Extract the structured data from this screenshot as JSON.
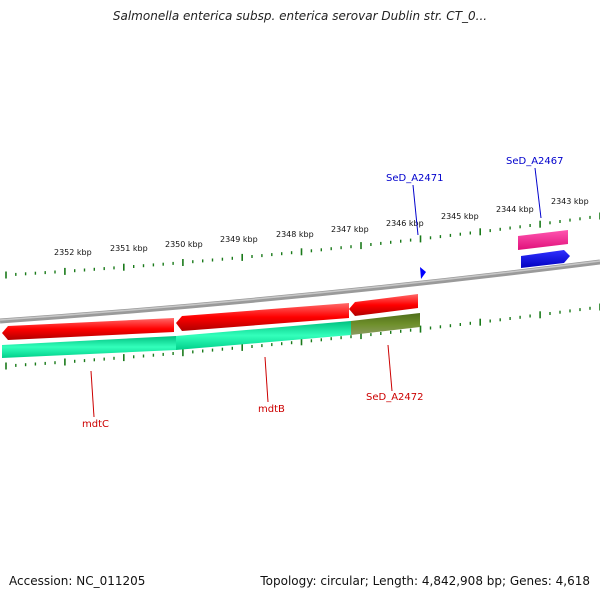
{
  "title": "Salmonella enterica subsp. enterica serovar Dublin str. CT_0...",
  "footer": {
    "accession": "Accession: NC_011205",
    "summary": "Topology: circular; Length: 4,842,908 bp; Genes: 4,618"
  },
  "scale_labels": [
    "2352 kbp",
    "2351 kbp",
    "2350 kbp",
    "2349 kbp",
    "2348 kbp",
    "2347 kbp",
    "2346 kbp",
    "2345 kbp",
    "2344 kbp",
    "2343 kbp"
  ],
  "genes": [
    {
      "name": "mdtC",
      "color": "#cc0000"
    },
    {
      "name": "mdtB",
      "color": "#cc0000"
    },
    {
      "name": "SeD_A2472",
      "color": "#cc0000"
    },
    {
      "name": "SeD_A2471",
      "color": "#0000cc"
    },
    {
      "name": "SeD_A2467",
      "color": "#0000cc"
    }
  ],
  "colors": {
    "cds_red": "#ff0000",
    "cds_green": "#00e8a0",
    "cds_olive": "#6b8e23",
    "cds_pink": "#ff2a9a",
    "cds_blue": "#0000ff",
    "tick_green": "#1a7a1a",
    "backbone": "#8a8a8a"
  }
}
